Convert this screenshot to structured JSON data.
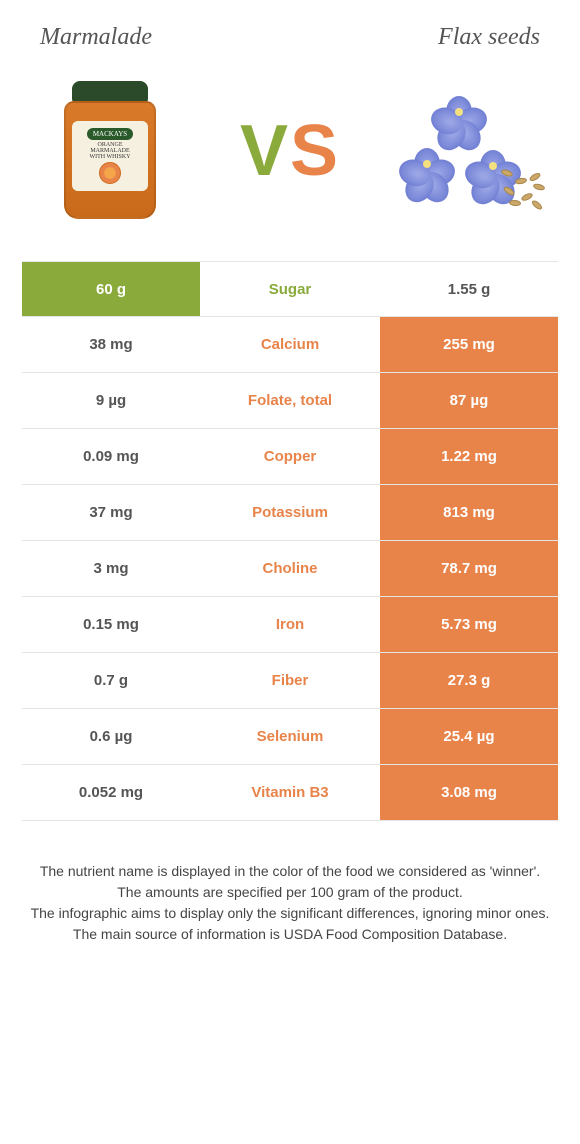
{
  "header": {
    "left_title": "Marmalade",
    "right_title": "Flax seeds"
  },
  "vs": {
    "v": "V",
    "s": "S"
  },
  "jar_label": {
    "brand": "MACKAYS",
    "line1": "ORANGE",
    "line2": "MARMALADE",
    "line3": "WITH WHISKY"
  },
  "colors": {
    "left": "#8aaa3b",
    "right": "#e8844a",
    "neutral_bg": "#ffffff",
    "neutral_text": "#555555"
  },
  "rows": [
    {
      "nutrient": "Sugar",
      "left": "60 g",
      "right": "1.55 g",
      "winner": "left"
    },
    {
      "nutrient": "Calcium",
      "left": "38 mg",
      "right": "255 mg",
      "winner": "right"
    },
    {
      "nutrient": "Folate, total",
      "left": "9 µg",
      "right": "87 µg",
      "winner": "right"
    },
    {
      "nutrient": "Copper",
      "left": "0.09 mg",
      "right": "1.22 mg",
      "winner": "right"
    },
    {
      "nutrient": "Potassium",
      "left": "37 mg",
      "right": "813 mg",
      "winner": "right"
    },
    {
      "nutrient": "Choline",
      "left": "3 mg",
      "right": "78.7 mg",
      "winner": "right"
    },
    {
      "nutrient": "Iron",
      "left": "0.15 mg",
      "right": "5.73 mg",
      "winner": "right"
    },
    {
      "nutrient": "Fiber",
      "left": "0.7 g",
      "right": "27.3 g",
      "winner": "right"
    },
    {
      "nutrient": "Selenium",
      "left": "0.6 µg",
      "right": "25.4 µg",
      "winner": "right"
    },
    {
      "nutrient": "Vitamin B3",
      "left": "0.052 mg",
      "right": "3.08 mg",
      "winner": "right"
    }
  ],
  "footnotes": [
    "The nutrient name is displayed in the color of the food we considered as 'winner'.",
    "The amounts are specified per 100 gram of the product.",
    "The infographic aims to display only the significant differences, ignoring minor ones.",
    "The main source of information is USDA Food Composition Database."
  ]
}
